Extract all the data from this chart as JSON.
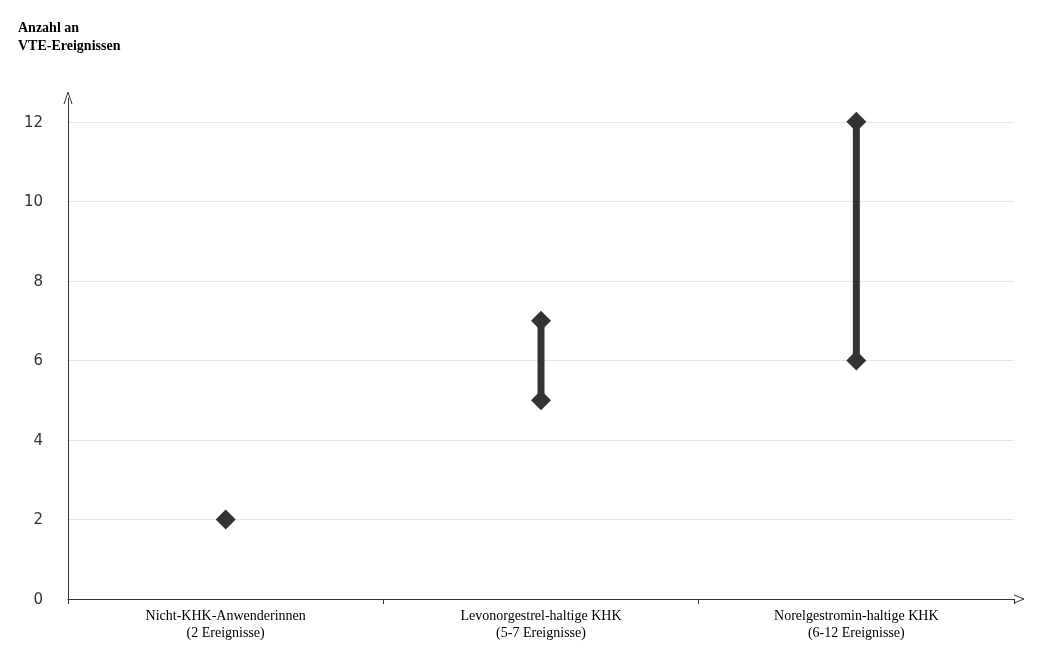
{
  "chart_data": {
    "type": "line",
    "ylabel": "Anzahl an\nVTE-Ereignissen",
    "categories": [
      "Nicht-KHK-Anwenderinnen\n(2 Ereignisse)",
      "Levonorgestrel-haltige KHK\n(5-7 Ereignisse)",
      "Norelgestromin-haltige KHK\n(6-12 Ereignisse)"
    ],
    "series": [
      {
        "x": [
          "Nicht-KHK-Anwenderinnen\n(2 Ereignisse)"
        ],
        "values": [
          2
        ],
        "color": "#333333"
      },
      {
        "x": [
          "Levonorgestrel-haltige KHK\n(5-7 Ereignisse)",
          "Levonorgestrel-haltige KHK\n(5-7 Ereignisse)"
        ],
        "values": [
          5,
          7
        ],
        "color": "#333333"
      },
      {
        "x": [
          "Norelgestromin-haltige KHK\n(6-12 Ereignisse)",
          "Norelgestromin-haltige KHK\n(6-12 Ereignisse)"
        ],
        "values": [
          6,
          12
        ],
        "color": "#333333"
      }
    ],
    "marker": "diamond",
    "line_style": "solid",
    "ylim": [
      0,
      12.6
    ],
    "yticks": [
      0,
      2,
      4,
      6,
      8,
      10,
      12
    ],
    "grid": "y"
  }
}
